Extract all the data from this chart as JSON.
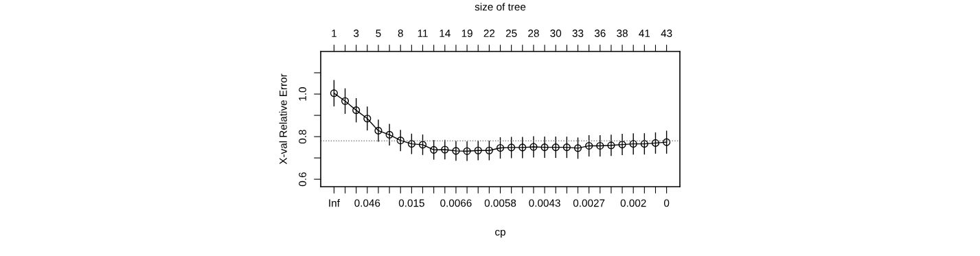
{
  "chart_data": {
    "type": "line",
    "xlabel": "cp",
    "ylabel": "X-val Relative Error",
    "x2label": "size of tree",
    "categories": [
      "Inf",
      null,
      null,
      "0.046",
      null,
      null,
      null,
      "0.015",
      null,
      null,
      null,
      "0.0066",
      null,
      null,
      null,
      "0.0058",
      null,
      null,
      null,
      "0.0043",
      null,
      null,
      null,
      "0.0027",
      null,
      null,
      null,
      "0.002",
      null,
      null,
      "0"
    ],
    "annotations": [
      "1",
      "3",
      "5",
      "8",
      "11",
      "14",
      "19",
      "22",
      "25",
      "28",
      "30",
      "33",
      "36",
      "38",
      "41",
      "43"
    ],
    "ylim": [
      0.565,
      1.2
    ],
    "yticks": [
      0.6,
      {
        "value": 0.7,
        "label": null
      },
      0.8,
      {
        "value": 0.9,
        "label": null
      },
      {
        "value": 1.0,
        "label": "1.0"
      },
      {
        "value": 1.1,
        "label": null
      }
    ],
    "series": [
      {
        "color": "#000000",
        "values": [
          1.004,
          0.967,
          0.924,
          0.885,
          0.828,
          0.809,
          0.782,
          0.766,
          0.762,
          0.738,
          0.739,
          0.733,
          0.732,
          0.735,
          0.735,
          0.747,
          0.749,
          0.749,
          0.752,
          0.75,
          0.75,
          0.75,
          0.746,
          0.757,
          0.757,
          0.759,
          0.763,
          0.766,
          0.766,
          0.77,
          0.774
        ],
        "errors": [
          0.062,
          0.06,
          0.057,
          0.056,
          0.052,
          0.051,
          0.05,
          0.048,
          0.048,
          0.046,
          0.046,
          0.046,
          0.046,
          0.046,
          0.046,
          0.05,
          0.05,
          0.05,
          0.05,
          0.05,
          0.05,
          0.05,
          0.05,
          0.05,
          0.05,
          0.05,
          0.05,
          0.05,
          0.05,
          0.05,
          0.054
        ]
      }
    ],
    "ref_lines": [
      {
        "axis": "y",
        "value": 0.78,
        "color": "#808080",
        "line_style": "dotted"
      }
    ],
    "marker": "circle",
    "line_style": "solid",
    "grid": false,
    "legend": false
  }
}
